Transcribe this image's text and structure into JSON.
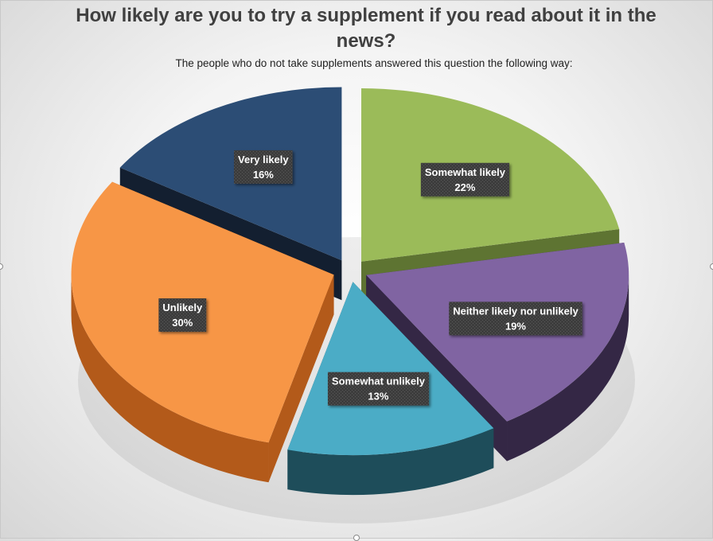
{
  "chart_data": {
    "type": "pie",
    "title": "How likely are you to try a supplement if you read about it in the news?",
    "subtitle": "The people who do not take supplements answered this question the following way:",
    "slices": [
      {
        "label": "Somewhat likely",
        "value": 22,
        "percent_label": "22%",
        "color": "#9BBB59",
        "side": "#5E7432"
      },
      {
        "label": "Neither likely nor unlikely",
        "value": 19,
        "percent_label": "19%",
        "color": "#8064A2",
        "side": "#342745"
      },
      {
        "label": "Somewhat unlikely",
        "value": 13,
        "percent_label": "13%",
        "color": "#4BACC6",
        "side": "#1E4D5A"
      },
      {
        "label": "Unlikely",
        "value": 30,
        "percent_label": "30%",
        "color": "#F79646",
        "side": "#B35A1A"
      },
      {
        "label": "Very likely",
        "value": 16,
        "percent_label": "16%",
        "color": "#2C4D75",
        "side": "#131F30"
      }
    ],
    "legend": "none",
    "data_labels": "inside"
  }
}
